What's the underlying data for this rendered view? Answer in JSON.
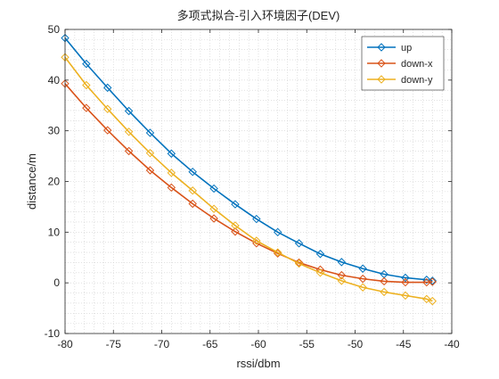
{
  "chart_data": {
    "type": "line",
    "title": "多项式拟合-引入环境因子(DEV)",
    "xlabel": "rssi/dbm",
    "ylabel": "distance/m",
    "xlim": [
      -80,
      -40
    ],
    "ylim": [
      -10,
      50
    ],
    "xticks": [
      -80,
      -75,
      -70,
      -65,
      -60,
      -55,
      -50,
      -45,
      -40
    ],
    "yticks": [
      -10,
      0,
      10,
      20,
      30,
      40,
      50
    ],
    "xtick_labels": [
      "-80",
      "-75",
      "-70",
      "-65",
      "-60",
      "-55",
      "-50",
      "-45",
      "-40"
    ],
    "ytick_labels": [
      "-10",
      "0",
      "10",
      "20",
      "30",
      "40",
      "50"
    ],
    "grid": "minor dotted",
    "legend_position": "top-right",
    "marker": "diamond",
    "x": [
      -80,
      -77.8,
      -75.6,
      -73.4,
      -71.2,
      -69,
      -66.8,
      -64.6,
      -62.4,
      -60.2,
      -58,
      -55.8,
      -53.6,
      -51.4,
      -49.2,
      -47,
      -44.8,
      -42.6,
      -42
    ],
    "series": [
      {
        "name": "up",
        "color": "#0072BD",
        "values": [
          48.3,
          43.2,
          38.5,
          33.9,
          29.6,
          25.5,
          21.9,
          18.6,
          15.5,
          12.6,
          10.0,
          7.8,
          5.7,
          4.1,
          2.8,
          1.7,
          1.0,
          0.6,
          0.4
        ]
      },
      {
        "name": "down-x",
        "color": "#D95319",
        "values": [
          39.3,
          34.5,
          30.1,
          26.0,
          22.2,
          18.8,
          15.6,
          12.7,
          10.1,
          7.8,
          5.8,
          4.0,
          2.6,
          1.5,
          0.8,
          0.3,
          0.1,
          0.1,
          0.2
        ]
      },
      {
        "name": "down-y",
        "color": "#EDB120",
        "values": [
          44.5,
          39.0,
          34.3,
          29.8,
          25.6,
          21.7,
          18.2,
          14.6,
          11.3,
          8.3,
          6.0,
          3.8,
          2.0,
          0.4,
          -0.9,
          -1.8,
          -2.5,
          -3.2,
          -3.6
        ]
      }
    ]
  }
}
